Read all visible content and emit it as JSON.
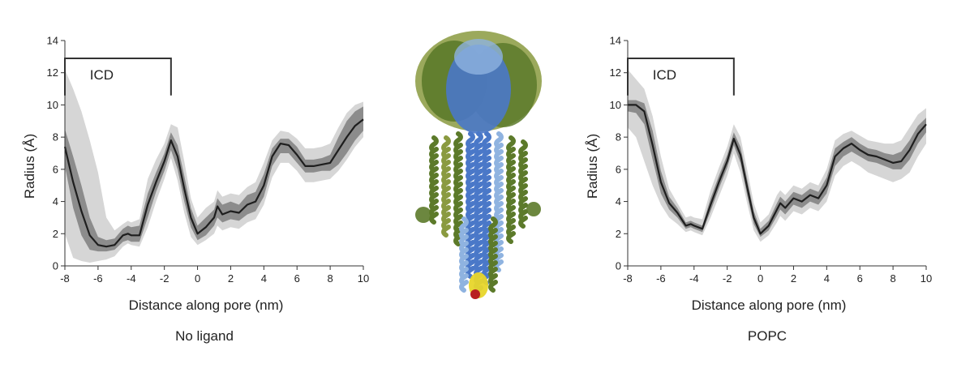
{
  "chart_data": [
    {
      "type": "line",
      "caption": "No ligand",
      "xlabel": "Distance along pore (nm)",
      "ylabel": "Radius (Å)",
      "xlim": [
        -8,
        10
      ],
      "ylim": [
        0,
        14
      ],
      "xticks": [
        "-8",
        "-6",
        "-4",
        "-2",
        "0",
        "2",
        "4",
        "6",
        "8",
        "10"
      ],
      "yticks": [
        "0",
        "2",
        "4",
        "6",
        "8",
        "10",
        "12",
        "14"
      ],
      "grid": false,
      "annotation": {
        "text": "ICD",
        "x_start": -8,
        "x_end": -1.6,
        "y_top": 14,
        "y_bottom": 12.2
      },
      "x": [
        -8,
        -7.5,
        -7,
        -6.5,
        -6,
        -5.5,
        -5,
        -4.5,
        -4.2,
        -4,
        -3.5,
        -3,
        -2.5,
        -2,
        -1.6,
        -1.2,
        -0.8,
        -0.4,
        0,
        0.5,
        1,
        1.2,
        1.5,
        2,
        2.5,
        3,
        3.5,
        4,
        4.5,
        5,
        5.5,
        6,
        6.5,
        7,
        7.5,
        8,
        8.5,
        9,
        9.5,
        10
      ],
      "series": [
        {
          "type": "mean",
          "values": [
            7.4,
            5.2,
            3.4,
            1.9,
            1.3,
            1.2,
            1.3,
            1.9,
            2.0,
            1.9,
            1.9,
            3.8,
            5.2,
            6.5,
            7.8,
            6.8,
            4.8,
            3.0,
            2.0,
            2.4,
            3.0,
            3.7,
            3.2,
            3.4,
            3.3,
            3.8,
            4.0,
            5.0,
            6.8,
            7.6,
            7.5,
            6.9,
            6.2,
            6.2,
            6.3,
            6.4,
            7.2,
            8.0,
            8.7,
            9.1
          ]
        },
        {
          "type": "sd-lower",
          "values": [
            6.2,
            3.6,
            1.9,
            1.0,
            0.9,
            0.9,
            1.0,
            1.5,
            1.6,
            1.5,
            1.5,
            3.0,
            4.6,
            5.9,
            7.2,
            6.0,
            4.0,
            2.4,
            1.6,
            1.9,
            2.5,
            3.0,
            2.7,
            2.9,
            2.8,
            3.2,
            3.4,
            4.3,
            6.2,
            7.0,
            7.0,
            6.4,
            5.8,
            5.8,
            5.9,
            5.9,
            6.3,
            7.0,
            7.8,
            8.4
          ]
        },
        {
          "type": "sd-upper",
          "values": [
            8.5,
            6.8,
            5.0,
            3.0,
            1.8,
            1.6,
            1.7,
            2.3,
            2.5,
            2.4,
            2.5,
            4.5,
            5.8,
            7.0,
            8.3,
            7.5,
            5.6,
            3.6,
            2.5,
            3.0,
            3.5,
            4.2,
            3.8,
            4.0,
            3.8,
            4.4,
            4.6,
            5.7,
            7.3,
            7.9,
            7.9,
            7.4,
            6.6,
            6.6,
            6.7,
            6.9,
            8.0,
            9.0,
            9.6,
            9.9
          ]
        },
        {
          "type": "range-lower",
          "values": [
            2.0,
            0.5,
            0.3,
            0.2,
            0.3,
            0.4,
            0.6,
            1.2,
            1.4,
            1.3,
            1.2,
            2.4,
            4.0,
            5.4,
            6.7,
            5.3,
            3.3,
            1.8,
            1.3,
            1.6,
            2.0,
            2.5,
            2.2,
            2.4,
            2.3,
            2.7,
            2.9,
            3.8,
            5.5,
            6.4,
            6.4,
            5.9,
            5.2,
            5.2,
            5.3,
            5.4,
            5.9,
            6.6,
            7.4,
            8.0
          ]
        },
        {
          "type": "range-upper",
          "values": [
            12.2,
            11.0,
            9.6,
            7.8,
            5.8,
            3.0,
            2.2,
            2.6,
            2.8,
            2.7,
            2.9,
            5.4,
            6.6,
            7.6,
            8.8,
            8.6,
            6.5,
            4.2,
            3.0,
            3.6,
            4.0,
            4.7,
            4.3,
            4.5,
            4.4,
            4.9,
            5.2,
            6.4,
            7.8,
            8.4,
            8.3,
            7.9,
            7.3,
            7.3,
            7.4,
            7.6,
            8.6,
            9.5,
            10.0,
            10.2
          ]
        }
      ]
    },
    {
      "type": "line",
      "caption": "POPC",
      "xlabel": "Distance along pore (nm)",
      "ylabel": "Radius (Å)",
      "xlim": [
        -8,
        10
      ],
      "ylim": [
        0,
        14
      ],
      "xticks": [
        "-8",
        "-6",
        "-4",
        "-2",
        "0",
        "2",
        "4",
        "6",
        "8",
        "10"
      ],
      "yticks": [
        "0",
        "2",
        "4",
        "6",
        "8",
        "10",
        "12",
        "14"
      ],
      "grid": false,
      "annotation": {
        "text": "ICD",
        "x_start": -8,
        "x_end": -1.6,
        "y_top": 14,
        "y_bottom": 12.2
      },
      "x": [
        -8,
        -7.5,
        -7,
        -6.5,
        -6,
        -5.5,
        -5,
        -4.5,
        -4.2,
        -4,
        -3.5,
        -3,
        -2.5,
        -2,
        -1.6,
        -1.2,
        -0.8,
        -0.4,
        0,
        0.5,
        1,
        1.2,
        1.5,
        2,
        2.5,
        3,
        3.5,
        4,
        4.5,
        5,
        5.5,
        6,
        6.5,
        7,
        7.5,
        8,
        8.5,
        9,
        9.5,
        10
      ],
      "series": [
        {
          "type": "mean",
          "values": [
            10.0,
            10.0,
            9.6,
            7.5,
            5.2,
            3.9,
            3.3,
            2.5,
            2.6,
            2.5,
            2.3,
            3.8,
            5.2,
            6.5,
            7.9,
            6.9,
            4.9,
            3.0,
            2.0,
            2.5,
            3.5,
            3.9,
            3.6,
            4.2,
            4.0,
            4.4,
            4.2,
            5.0,
            6.8,
            7.3,
            7.6,
            7.2,
            6.9,
            6.8,
            6.6,
            6.4,
            6.5,
            7.2,
            8.2,
            8.8
          ]
        },
        {
          "type": "sd-lower",
          "values": [
            9.6,
            9.5,
            8.8,
            6.6,
            4.5,
            3.5,
            3.0,
            2.3,
            2.4,
            2.3,
            2.1,
            3.4,
            4.8,
            6.1,
            7.5,
            6.4,
            4.4,
            2.6,
            1.8,
            2.2,
            3.1,
            3.5,
            3.2,
            3.8,
            3.6,
            4.0,
            3.8,
            4.5,
            6.2,
            6.8,
            7.1,
            6.8,
            6.5,
            6.4,
            6.2,
            6.0,
            6.0,
            6.6,
            7.6,
            8.3
          ]
        },
        {
          "type": "sd-upper",
          "values": [
            10.3,
            10.3,
            10.1,
            8.4,
            5.9,
            4.3,
            3.6,
            2.7,
            2.8,
            2.7,
            2.5,
            4.2,
            5.6,
            6.9,
            8.3,
            7.4,
            5.4,
            3.4,
            2.3,
            2.8,
            3.9,
            4.3,
            4.0,
            4.6,
            4.4,
            4.8,
            4.6,
            5.5,
            7.3,
            7.7,
            8.0,
            7.6,
            7.3,
            7.2,
            7.0,
            6.9,
            7.1,
            7.8,
            8.7,
            9.2
          ]
        },
        {
          "type": "range-lower",
          "values": [
            8.6,
            8.0,
            6.5,
            5.0,
            3.8,
            3.0,
            2.6,
            2.1,
            2.2,
            2.1,
            1.9,
            3.0,
            4.3,
            5.6,
            7.0,
            5.8,
            3.9,
            2.2,
            1.5,
            1.9,
            2.7,
            3.1,
            2.8,
            3.4,
            3.2,
            3.6,
            3.4,
            4.0,
            5.6,
            6.2,
            6.5,
            6.2,
            5.8,
            5.6,
            5.4,
            5.2,
            5.4,
            5.8,
            6.8,
            7.6
          ]
        },
        {
          "type": "range-upper",
          "values": [
            12.2,
            11.6,
            11.0,
            9.3,
            6.8,
            4.8,
            3.9,
            3.0,
            3.1,
            3.0,
            2.9,
            4.7,
            6.1,
            7.4,
            8.8,
            8.0,
            6.0,
            3.9,
            2.7,
            3.2,
            4.4,
            4.7,
            4.4,
            5.0,
            4.8,
            5.2,
            5.0,
            6.0,
            7.8,
            8.2,
            8.4,
            8.1,
            7.8,
            7.7,
            7.6,
            7.6,
            7.8,
            8.6,
            9.4,
            9.8
          ]
        }
      ]
    }
  ],
  "colors": {
    "mean_line": "#1e1e1e",
    "sd_band": "#8c8c8c",
    "range_band": "#d6d6d6",
    "axis": "#333333",
    "protein_blue": "#4a78c8",
    "protein_lightblue": "#8fb3e0",
    "protein_green": "#5c7a2a",
    "protein_olive": "#8a9a40",
    "ligand_yellow": "#e8d62a",
    "ligand_red": "#b82020"
  }
}
